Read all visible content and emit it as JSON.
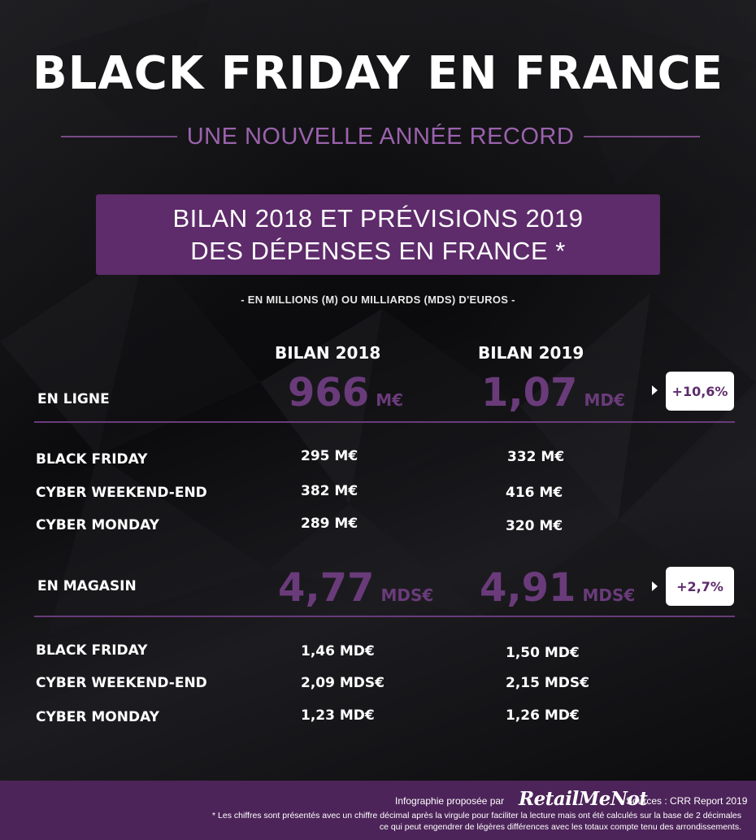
{
  "header": {
    "title": "BLACK FRIDAY EN FRANCE",
    "subtitle": "UNE NOUVELLE ANNÉE RECORD"
  },
  "banner": {
    "line1": "BILAN 2018 ET PRÉVISIONS 2019",
    "line2": "DES DÉPENSES EN FRANCE *"
  },
  "units_note": "- EN MILLIONS (M) OU MILLIARDS (MDS) D'EUROS -",
  "columns": {
    "col2018": "BILAN 2018",
    "col2019": "BILAN 2019"
  },
  "online": {
    "label": "EN LIGNE",
    "value_2018": "966",
    "unit_2018": "M€",
    "value_2019": "1,07",
    "unit_2019": "MD€",
    "growth": "+10,6%",
    "rows": [
      {
        "label": "BLACK FRIDAY",
        "v2018": "295 M€",
        "v2019": "332 M€"
      },
      {
        "label": "CYBER WEEKEND-END",
        "v2018": "382 M€",
        "v2019": "416 M€"
      },
      {
        "label": "CYBER MONDAY",
        "v2018": "289 M€",
        "v2019": "320 M€"
      }
    ]
  },
  "store": {
    "label": "EN MAGASIN",
    "value_2018": "4,77",
    "unit_2018": "MDS€",
    "value_2019": "4,91",
    "unit_2019": "MDS€",
    "growth": "+2,7%",
    "rows": [
      {
        "label": "BLACK FRIDAY",
        "v2018": "1,46 MD€",
        "v2019": "1,50 MD€"
      },
      {
        "label": "CYBER WEEKEND-END",
        "v2018": "2,09 MDS€",
        "v2019": "2,15 MDS€"
      },
      {
        "label": "CYBER MONDAY",
        "v2018": "1,23 MD€",
        "v2019": "1,26 MD€"
      }
    ]
  },
  "footer": {
    "byline": "Infographie proposée par",
    "logo": "RetailMeNot",
    "sources": "Sources : CRR Report 2019",
    "note_line1": "* Les chiffres sont présentés avec un chiffre décimal après la virgule pour faciliter la lecture mais ont été calculés sur la base de 2 décimales",
    "note_line2": "ce qui peut engendrer de légères différences avec les totaux compte tenu des arrondissements."
  },
  "colors": {
    "accent_purple": "#5e2b6b",
    "big_number_purple": "#6a3b7a",
    "subtitle_purple": "#9b62ad",
    "footer_purple": "#4d2459",
    "background": "#0d0d0f"
  }
}
